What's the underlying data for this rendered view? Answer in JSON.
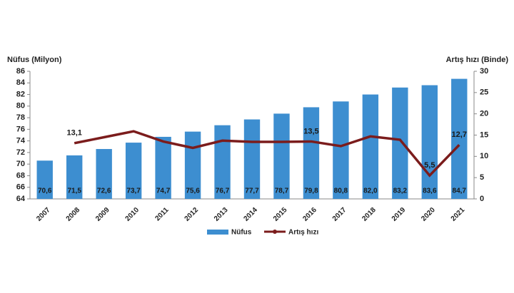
{
  "chart_data": {
    "type": "bar_line",
    "y_label": "Nüfus (Milyon)",
    "y2_label": "Artış hızı (Binde)",
    "categories": [
      "2007",
      "2008",
      "2009",
      "2010",
      "2011",
      "2012",
      "2013",
      "2014",
      "2015",
      "2016",
      "2017",
      "2018",
      "2019",
      "2020",
      "2021"
    ],
    "series": [
      {
        "name": "Nüfus",
        "color": "#3d8ed0",
        "type": "bar",
        "values": [
          70.6,
          71.5,
          72.6,
          73.7,
          74.7,
          75.6,
          76.7,
          77.7,
          78.7,
          79.8,
          80.8,
          82.0,
          83.2,
          83.6,
          84.7
        ],
        "value_labels": [
          "70,6",
          "71,5",
          "72,6",
          "73,7",
          "74,7",
          "75,6",
          "76,7",
          "77,7",
          "78,7",
          "79,8",
          "80,8",
          "82,0",
          "83,2",
          "83,6",
          "84,7"
        ]
      },
      {
        "name": "Artış hızı",
        "color": "#7b1c1c",
        "type": "line",
        "axis": "y2",
        "values": [
          null,
          13.1,
          14.5,
          15.9,
          13.5,
          12.0,
          13.7,
          13.4,
          13.4,
          13.5,
          12.4,
          14.7,
          13.9,
          5.5,
          12.7
        ],
        "value_labels": [
          null,
          "13,1",
          null,
          null,
          null,
          null,
          null,
          null,
          null,
          "13,5",
          null,
          null,
          null,
          "5,5",
          "12,7"
        ]
      }
    ],
    "ylim": [
      64,
      86
    ],
    "yticks": [
      64,
      66,
      68,
      70,
      72,
      74,
      76,
      78,
      80,
      82,
      84,
      86
    ],
    "y2lim": [
      0,
      30
    ],
    "y2ticks": [
      0,
      5,
      10,
      15,
      20,
      25,
      30
    ],
    "legend": "bottom"
  }
}
